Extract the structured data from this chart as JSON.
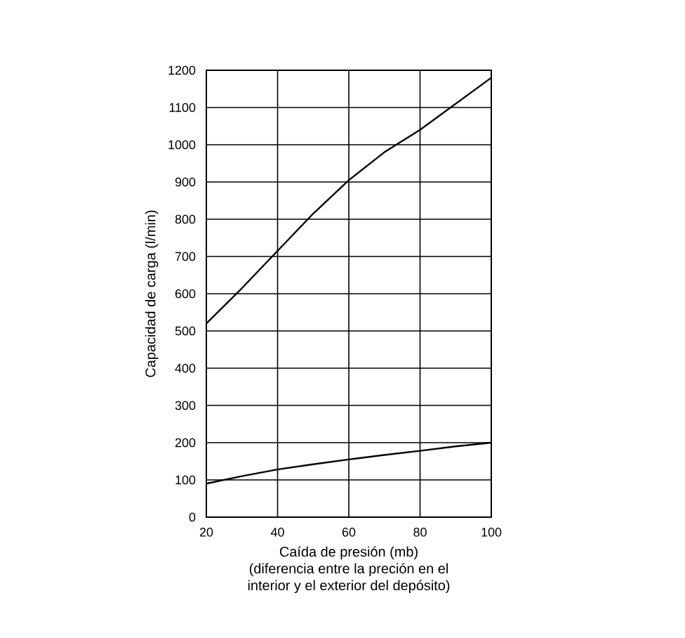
{
  "chart_data": {
    "type": "line",
    "xlabel": "Caída de presión (mb)\n(diferencia entre la preción en el\ninterior y el exterior del depósito)",
    "ylabel": "Capacidad de carga (l/min)",
    "x": [
      20,
      30,
      40,
      50,
      60,
      70,
      80,
      90,
      100
    ],
    "series": [
      {
        "color": "#000000",
        "values": [
          520,
          615,
          715,
          815,
          905,
          980,
          1040,
          1110,
          1180
        ]
      },
      {
        "color": "#000000",
        "values": [
          90,
          110,
          128,
          142,
          155,
          167,
          178,
          190,
          200
        ]
      }
    ],
    "xlim": [
      20,
      100
    ],
    "ylim": [
      0,
      1200
    ],
    "xticks": [
      20,
      40,
      60,
      80,
      100
    ],
    "yticks": [
      0,
      100,
      200,
      300,
      400,
      500,
      600,
      700,
      800,
      900,
      1000,
      1100,
      1200
    ],
    "grid": true,
    "marker": "none",
    "line_style": "solid"
  }
}
